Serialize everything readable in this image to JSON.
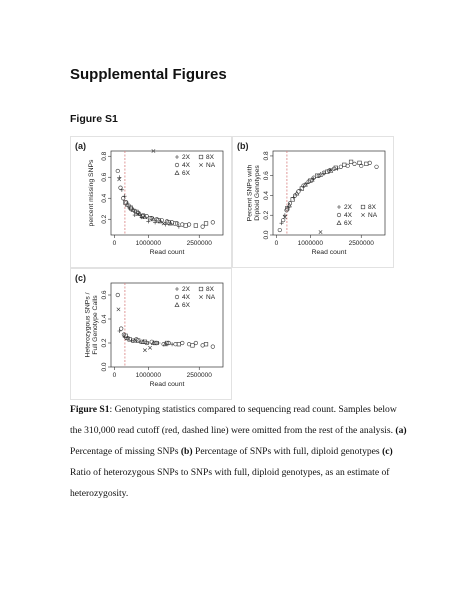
{
  "page": {
    "heading": "Supplemental Figures",
    "figure_label": "Figure S1"
  },
  "caption": {
    "lead": "Figure S1",
    "text_1": ": Genotyping statistics compared to sequencing read count. Samples below the 310,000 read cutoff (red, dashed line) were omitted from the rest of the analysis. ",
    "a_tag": "(a)",
    "text_2": " Percentage of missing SNPs ",
    "b_tag": "(b)",
    "text_3": " Percentage of SNPs with full, diploid genotypes ",
    "c_tag": "(c)",
    "text_4": " Ratio of heterozygous SNPs to SNPs with full, diploid genotypes, as an estimate of heterozygosity."
  },
  "colors": {
    "cutoff_line": "#d98080",
    "ink": "#333333"
  },
  "chart_data": [
    {
      "panel_label": "(a)",
      "type": "scatter",
      "xlabel": "Read count",
      "ylabel": "percent missing SNPs",
      "xlim": [
        -100000,
        3200000
      ],
      "ylim": [
        0.05,
        0.85
      ],
      "xticks": [
        0,
        1000000,
        2500000
      ],
      "xtick_labels": [
        "0",
        "1000000",
        "2500000"
      ],
      "yticks": [
        0.2,
        0.4,
        0.6,
        0.8
      ],
      "ytick_labels": [
        "0.2",
        "0.4",
        "0.6",
        "0.8"
      ],
      "cutoff_x": 310000,
      "legend": {
        "position": "top-right",
        "entries": [
          {
            "symbol": "+",
            "label": "2X"
          },
          {
            "symbol": "□",
            "label": "8X"
          },
          {
            "symbol": "○",
            "label": "4X"
          },
          {
            "symbol": "×",
            "label": "NA"
          },
          {
            "symbol": "△",
            "label": "6X"
          }
        ]
      },
      "series": [
        {
          "name": "2X",
          "marker": "plus",
          "points": [
            [
              150000,
              0.6
            ],
            [
              220000,
              0.48
            ],
            [
              300000,
              0.42
            ],
            [
              450000,
              0.3
            ],
            [
              600000,
              0.24
            ],
            [
              800000,
              0.22
            ],
            [
              1000000,
              0.18
            ],
            [
              1200000,
              0.17
            ],
            [
              1500000,
              0.15
            ],
            [
              1900000,
              0.13
            ]
          ]
        },
        {
          "name": "4X",
          "marker": "circle",
          "points": [
            [
              100000,
              0.66
            ],
            [
              180000,
              0.5
            ],
            [
              260000,
              0.4
            ],
            [
              350000,
              0.36
            ],
            [
              420000,
              0.33
            ],
            [
              500000,
              0.3
            ],
            [
              600000,
              0.28
            ],
            [
              700000,
              0.26
            ],
            [
              850000,
              0.24
            ],
            [
              950000,
              0.23
            ],
            [
              1100000,
              0.21
            ],
            [
              1250000,
              0.2
            ],
            [
              1400000,
              0.19
            ],
            [
              1550000,
              0.18
            ],
            [
              1700000,
              0.17
            ],
            [
              1850000,
              0.16
            ],
            [
              2000000,
              0.15
            ],
            [
              2200000,
              0.15
            ],
            [
              2600000,
              0.13
            ],
            [
              2900000,
              0.17
            ]
          ]
        },
        {
          "name": "6X",
          "marker": "triangle",
          "points": [
            [
              380000,
              0.34
            ],
            [
              550000,
              0.29
            ],
            [
              750000,
              0.25
            ],
            [
              900000,
              0.22
            ],
            [
              1150000,
              0.2
            ],
            [
              1350000,
              0.18
            ],
            [
              1650000,
              0.16
            ]
          ]
        },
        {
          "name": "8X",
          "marker": "square",
          "points": [
            [
              320000,
              0.36
            ],
            [
              480000,
              0.31
            ],
            [
              650000,
              0.27
            ],
            [
              820000,
              0.23
            ],
            [
              1050000,
              0.21
            ],
            [
              1300000,
              0.19
            ],
            [
              1600000,
              0.17
            ],
            [
              1800000,
              0.16
            ],
            [
              2100000,
              0.14
            ],
            [
              2400000,
              0.14
            ],
            [
              2700000,
              0.16
            ]
          ]
        },
        {
          "name": "NA",
          "marker": "x",
          "points": [
            [
              1150000,
              0.85
            ],
            [
              140000,
              0.58
            ],
            [
              700000,
              0.25
            ],
            [
              1450000,
              0.16
            ]
          ]
        }
      ]
    },
    {
      "panel_label": "(b)",
      "type": "scatter",
      "xlabel": "Read count",
      "ylabel": "Percent SNPs with Diploid Genotypes",
      "xlim": [
        -100000,
        3200000
      ],
      "ylim": [
        0,
        0.85
      ],
      "xticks": [
        0,
        1000000,
        2500000
      ],
      "xtick_labels": [
        "0",
        "1000000",
        "2500000"
      ],
      "yticks": [
        0.0,
        0.2,
        0.4,
        0.6,
        0.8
      ],
      "ytick_labels": [
        "0.0",
        "0.2",
        "0.4",
        "0.6",
        "0.8"
      ],
      "cutoff_x": 310000,
      "legend": {
        "position": "bottom-right",
        "entries": [
          {
            "symbol": "+",
            "label": "2X"
          },
          {
            "symbol": "□",
            "label": "8X"
          },
          {
            "symbol": "○",
            "label": "4X"
          },
          {
            "symbol": "×",
            "label": "NA"
          },
          {
            "symbol": "△",
            "label": "6X"
          }
        ]
      },
      "series": [
        {
          "name": "2X",
          "marker": "plus",
          "points": [
            [
              150000,
              0.12
            ],
            [
              250000,
              0.2
            ],
            [
              350000,
              0.28
            ],
            [
              500000,
              0.38
            ],
            [
              700000,
              0.46
            ],
            [
              900000,
              0.52
            ],
            [
              1100000,
              0.57
            ],
            [
              1400000,
              0.62
            ],
            [
              1800000,
              0.67
            ]
          ]
        },
        {
          "name": "4X",
          "marker": "circle",
          "points": [
            [
              100000,
              0.05
            ],
            [
              200000,
              0.15
            ],
            [
              300000,
              0.25
            ],
            [
              400000,
              0.32
            ],
            [
              550000,
              0.4
            ],
            [
              650000,
              0.44
            ],
            [
              800000,
              0.5
            ],
            [
              950000,
              0.54
            ],
            [
              1100000,
              0.58
            ],
            [
              1250000,
              0.6
            ],
            [
              1400000,
              0.63
            ],
            [
              1550000,
              0.65
            ],
            [
              1700000,
              0.67
            ],
            [
              1900000,
              0.69
            ],
            [
              2100000,
              0.7
            ],
            [
              2300000,
              0.72
            ],
            [
              2500000,
              0.7
            ],
            [
              2750000,
              0.73
            ],
            [
              2950000,
              0.69
            ]
          ]
        },
        {
          "name": "6X",
          "marker": "triangle",
          "points": [
            [
              380000,
              0.3
            ],
            [
              600000,
              0.42
            ],
            [
              850000,
              0.51
            ],
            [
              1050000,
              0.56
            ],
            [
              1300000,
              0.61
            ],
            [
              1600000,
              0.65
            ]
          ]
        },
        {
          "name": "8X",
          "marker": "square",
          "points": [
            [
              320000,
              0.27
            ],
            [
              480000,
              0.36
            ],
            [
              750000,
              0.47
            ],
            [
              1000000,
              0.55
            ],
            [
              1200000,
              0.6
            ],
            [
              1500000,
              0.64
            ],
            [
              1750000,
              0.68
            ],
            [
              2000000,
              0.71
            ],
            [
              2200000,
              0.74
            ],
            [
              2450000,
              0.73
            ],
            [
              2650000,
              0.72
            ]
          ]
        },
        {
          "name": "NA",
          "marker": "x",
          "points": [
            [
              1300000,
              0.03
            ],
            [
              250000,
              0.18
            ],
            [
              1600000,
              0.66
            ]
          ]
        }
      ]
    },
    {
      "panel_label": "(c)",
      "type": "scatter",
      "xlabel": "Read count",
      "ylabel": "Heterozygous SNPs / Full Genotype Calls",
      "xlim": [
        -100000,
        3200000
      ],
      "ylim": [
        0,
        0.7
      ],
      "xticks": [
        0,
        1000000,
        2500000
      ],
      "xtick_labels": [
        "0",
        "1000000",
        "2500000"
      ],
      "yticks": [
        0.0,
        0.2,
        0.4,
        0.6
      ],
      "ytick_labels": [
        "0.0",
        "0.2",
        "0.4",
        "0.6"
      ],
      "cutoff_x": 310000,
      "legend": {
        "position": "top-right",
        "entries": [
          {
            "symbol": "+",
            "label": "2X"
          },
          {
            "symbol": "□",
            "label": "8X"
          },
          {
            "symbol": "○",
            "label": "4X"
          },
          {
            "symbol": "×",
            "label": "NA"
          },
          {
            "symbol": "△",
            "label": "6X"
          }
        ]
      },
      "series": [
        {
          "name": "2X",
          "marker": "plus",
          "points": [
            [
              150000,
              0.3
            ],
            [
              300000,
              0.25
            ],
            [
              500000,
              0.22
            ],
            [
              750000,
              0.21
            ],
            [
              1000000,
              0.2
            ],
            [
              1300000,
              0.2
            ],
            [
              1700000,
              0.19
            ]
          ]
        },
        {
          "name": "4X",
          "marker": "circle",
          "points": [
            [
              100000,
              0.6
            ],
            [
              200000,
              0.32
            ],
            [
              280000,
              0.27
            ],
            [
              400000,
              0.24
            ],
            [
              550000,
              0.22
            ],
            [
              650000,
              0.23
            ],
            [
              800000,
              0.21
            ],
            [
              950000,
              0.2
            ],
            [
              1100000,
              0.21
            ],
            [
              1250000,
              0.2
            ],
            [
              1450000,
              0.19
            ],
            [
              1600000,
              0.2
            ],
            [
              1800000,
              0.19
            ],
            [
              2000000,
              0.2
            ],
            [
              2200000,
              0.19
            ],
            [
              2400000,
              0.2
            ],
            [
              2600000,
              0.18
            ],
            [
              2900000,
              0.17
            ]
          ]
        },
        {
          "name": "6X",
          "marker": "triangle",
          "points": [
            [
              380000,
              0.24
            ],
            [
              600000,
              0.22
            ],
            [
              850000,
              0.21
            ],
            [
              1150000,
              0.2
            ],
            [
              1500000,
              0.19
            ]
          ]
        },
        {
          "name": "8X",
          "marker": "square",
          "points": [
            [
              330000,
              0.26
            ],
            [
              450000,
              0.23
            ],
            [
              700000,
              0.22
            ],
            [
              900000,
              0.21
            ],
            [
              1200000,
              0.2
            ],
            [
              1550000,
              0.2
            ],
            [
              1900000,
              0.19
            ],
            [
              2300000,
              0.18
            ],
            [
              2700000,
              0.19
            ]
          ]
        },
        {
          "name": "NA",
          "marker": "x",
          "points": [
            [
              120000,
              0.48
            ],
            [
              900000,
              0.14
            ],
            [
              1050000,
              0.16
            ]
          ]
        }
      ]
    }
  ]
}
